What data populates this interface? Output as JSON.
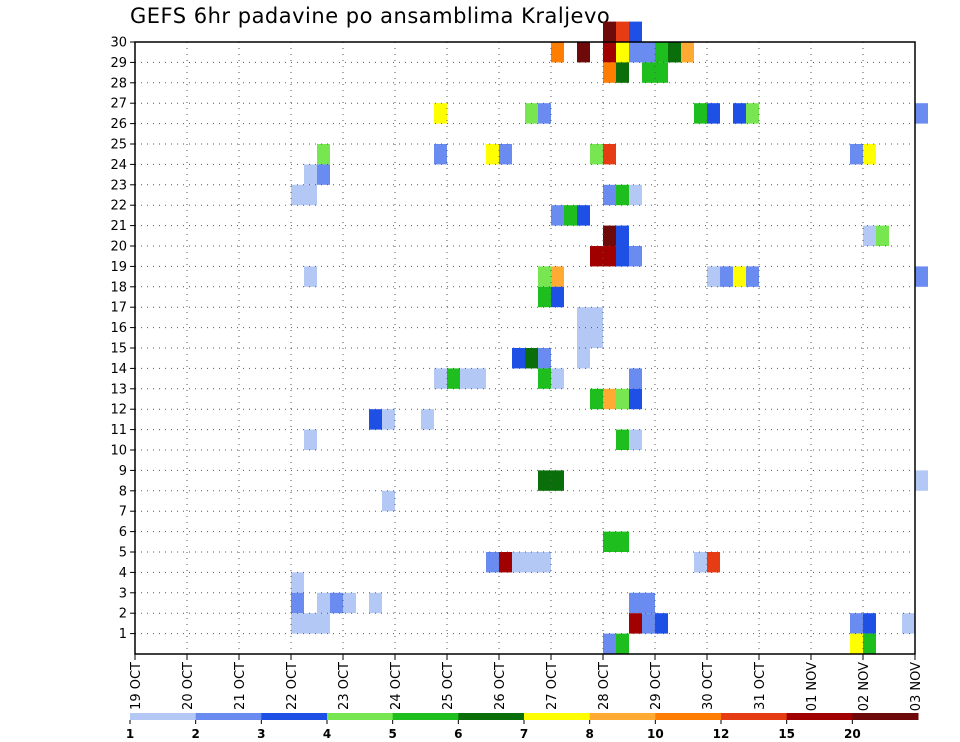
{
  "chart_data": {
    "type": "heatmap",
    "title": "GEFS 6hr padavine po ansamblima Kraljevo",
    "x_tick_labels": [
      "19 OCT",
      "20 OCT",
      "21 OCT",
      "22 OCT",
      "23 OCT",
      "24 OCT",
      "25 OCT",
      "26 OCT",
      "27 OCT",
      "28 OCT",
      "29 OCT",
      "30 OCT",
      "31 OCT",
      "01 NOV",
      "02 NOV",
      "03 NOV"
    ],
    "x_range_days": [
      0,
      15
    ],
    "step_hours": 6,
    "y_tick_labels": [
      "1",
      "2",
      "3",
      "4",
      "5",
      "6",
      "7",
      "8",
      "9",
      "10",
      "11",
      "12",
      "13",
      "14",
      "15",
      "16",
      "17",
      "18",
      "19",
      "20",
      "21",
      "22",
      "23",
      "24",
      "25",
      "26",
      "27",
      "28",
      "29",
      "30"
    ],
    "y_range": [
      0,
      30
    ],
    "grid": true,
    "legend": {
      "placement": "bottom",
      "colors": [
        "#b4c8f5",
        "#6a8cf0",
        "#1e50e6",
        "#78e650",
        "#1ebe1e",
        "#0a6e0a",
        "#ffff00",
        "#ffaa32",
        "#ff7d00",
        "#e63c14",
        "#a00000",
        "#6e0a0a"
      ],
      "labels": [
        "1",
        "2",
        "3",
        "4",
        "5",
        "6",
        "7",
        "8",
        "10",
        "12",
        "15",
        "20"
      ]
    },
    "cells": [
      {
        "member": 30,
        "start": "28 OCT 00",
        "level": 11
      },
      {
        "member": 30,
        "start": "28 OCT 06",
        "level": 9
      },
      {
        "member": 30,
        "start": "28 OCT 12",
        "level": 2
      },
      {
        "member": 29,
        "start": "27 OCT 00",
        "level": 8
      },
      {
        "member": 29,
        "start": "27 OCT 12",
        "level": 11
      },
      {
        "member": 29,
        "start": "28 OCT 00",
        "level": 10
      },
      {
        "member": 29,
        "start": "28 OCT 06",
        "level": 6
      },
      {
        "member": 29,
        "start": "28 OCT 12",
        "level": 1
      },
      {
        "member": 29,
        "start": "28 OCT 18",
        "level": 1
      },
      {
        "member": 29,
        "start": "29 OCT 00",
        "level": 4
      },
      {
        "member": 29,
        "start": "29 OCT 06",
        "level": 5
      },
      {
        "member": 29,
        "start": "29 OCT 12",
        "level": 7
      },
      {
        "member": 28,
        "start": "28 OCT 00",
        "level": 8
      },
      {
        "member": 28,
        "start": "28 OCT 06",
        "level": 5
      },
      {
        "member": 28,
        "start": "28 OCT 18",
        "level": 4
      },
      {
        "member": 28,
        "start": "29 OCT 00",
        "level": 4
      },
      {
        "member": 26,
        "start": "24 OCT 18",
        "level": 6
      },
      {
        "member": 26,
        "start": "26 OCT 12",
        "level": 3
      },
      {
        "member": 26,
        "start": "26 OCT 18",
        "level": 1
      },
      {
        "member": 26,
        "start": "29 OCT 18",
        "level": 4
      },
      {
        "member": 26,
        "start": "30 OCT 00",
        "level": 2
      },
      {
        "member": 26,
        "start": "30 OCT 12",
        "level": 2
      },
      {
        "member": 26,
        "start": "30 OCT 18",
        "level": 3
      },
      {
        "member": 26,
        "start": "03 NOV 00",
        "level": 1
      },
      {
        "member": 24,
        "start": "22 OCT 12",
        "level": 3
      },
      {
        "member": 24,
        "start": "24 OCT 18",
        "level": 1
      },
      {
        "member": 24,
        "start": "25 OCT 18",
        "level": 6
      },
      {
        "member": 24,
        "start": "26 OCT 00",
        "level": 1
      },
      {
        "member": 24,
        "start": "27 OCT 18",
        "level": 3
      },
      {
        "member": 24,
        "start": "28 OCT 00",
        "level": 9
      },
      {
        "member": 24,
        "start": "01 NOV 18",
        "level": 1
      },
      {
        "member": 24,
        "start": "02 NOV 00",
        "level": 6
      },
      {
        "member": 23,
        "start": "22 OCT 06",
        "level": 0
      },
      {
        "member": 23,
        "start": "22 OCT 12",
        "level": 1
      },
      {
        "member": 22,
        "start": "22 OCT 00",
        "level": 0
      },
      {
        "member": 22,
        "start": "22 OCT 06",
        "level": 0
      },
      {
        "member": 22,
        "start": "28 OCT 00",
        "level": 1
      },
      {
        "member": 22,
        "start": "28 OCT 06",
        "level": 4
      },
      {
        "member": 22,
        "start": "28 OCT 12",
        "level": 0
      },
      {
        "member": 21,
        "start": "27 OCT 00",
        "level": 1
      },
      {
        "member": 21,
        "start": "27 OCT 06",
        "level": 4
      },
      {
        "member": 21,
        "start": "27 OCT 12",
        "level": 2
      },
      {
        "member": 20,
        "start": "28 OCT 00",
        "level": 11
      },
      {
        "member": 20,
        "start": "28 OCT 06",
        "level": 2
      },
      {
        "member": 20,
        "start": "02 NOV 00",
        "level": 0
      },
      {
        "member": 20,
        "start": "02 NOV 06",
        "level": 3
      },
      {
        "member": 19,
        "start": "27 OCT 18",
        "level": 10
      },
      {
        "member": 19,
        "start": "28 OCT 00",
        "level": 10
      },
      {
        "member": 19,
        "start": "28 OCT 06",
        "level": 2
      },
      {
        "member": 19,
        "start": "28 OCT 12",
        "level": 1
      },
      {
        "member": 18,
        "start": "22 OCT 06",
        "level": 0
      },
      {
        "member": 18,
        "start": "26 OCT 18",
        "level": 3
      },
      {
        "member": 18,
        "start": "27 OCT 00",
        "level": 7
      },
      {
        "member": 18,
        "start": "30 OCT 00",
        "level": 0
      },
      {
        "member": 18,
        "start": "30 OCT 06",
        "level": 1
      },
      {
        "member": 18,
        "start": "30 OCT 12",
        "level": 6
      },
      {
        "member": 18,
        "start": "30 OCT 18",
        "level": 1
      },
      {
        "member": 18,
        "start": "03 NOV 00",
        "level": 1
      },
      {
        "member": 17,
        "start": "26 OCT 18",
        "level": 4
      },
      {
        "member": 17,
        "start": "27 OCT 00",
        "level": 2
      },
      {
        "member": 16,
        "start": "27 OCT 12",
        "level": 0
      },
      {
        "member": 16,
        "start": "27 OCT 18",
        "level": 0
      },
      {
        "member": 15,
        "start": "27 OCT 12",
        "level": 0
      },
      {
        "member": 15,
        "start": "27 OCT 18",
        "level": 0
      },
      {
        "member": 14,
        "start": "26 OCT 06",
        "level": 2
      },
      {
        "member": 14,
        "start": "26 OCT 12",
        "level": 5
      },
      {
        "member": 14,
        "start": "26 OCT 18",
        "level": 1
      },
      {
        "member": 14,
        "start": "27 OCT 12",
        "level": 0
      },
      {
        "member": 13,
        "start": "24 OCT 18",
        "level": 0
      },
      {
        "member": 13,
        "start": "25 OCT 00",
        "level": 4
      },
      {
        "member": 13,
        "start": "25 OCT 06",
        "level": 0
      },
      {
        "member": 13,
        "start": "25 OCT 12",
        "level": 0
      },
      {
        "member": 13,
        "start": "26 OCT 18",
        "level": 4
      },
      {
        "member": 13,
        "start": "27 OCT 00",
        "level": 0
      },
      {
        "member": 13,
        "start": "28 OCT 12",
        "level": 1
      },
      {
        "member": 12,
        "start": "27 OCT 18",
        "level": 4
      },
      {
        "member": 12,
        "start": "28 OCT 00",
        "level": 7
      },
      {
        "member": 12,
        "start": "28 OCT 06",
        "level": 3
      },
      {
        "member": 12,
        "start": "28 OCT 12",
        "level": 2
      },
      {
        "member": 11,
        "start": "23 OCT 12",
        "level": 2
      },
      {
        "member": 11,
        "start": "23 OCT 18",
        "level": 0
      },
      {
        "member": 11,
        "start": "24 OCT 12",
        "level": 0
      },
      {
        "member": 10,
        "start": "22 OCT 06",
        "level": 0
      },
      {
        "member": 10,
        "start": "28 OCT 06",
        "level": 4
      },
      {
        "member": 10,
        "start": "28 OCT 12",
        "level": 0
      },
      {
        "member": 8,
        "start": "26 OCT 18",
        "level": 5
      },
      {
        "member": 8,
        "start": "27 OCT 00",
        "level": 5
      },
      {
        "member": 8,
        "start": "03 NOV 00",
        "level": 0
      },
      {
        "member": 7,
        "start": "23 OCT 18",
        "level": 0
      },
      {
        "member": 5,
        "start": "28 OCT 00",
        "level": 4
      },
      {
        "member": 5,
        "start": "28 OCT 06",
        "level": 4
      },
      {
        "member": 4,
        "start": "25 OCT 18",
        "level": 1
      },
      {
        "member": 4,
        "start": "26 OCT 00",
        "level": 10
      },
      {
        "member": 4,
        "start": "26 OCT 06",
        "level": 0
      },
      {
        "member": 4,
        "start": "26 OCT 12",
        "level": 0
      },
      {
        "member": 4,
        "start": "26 OCT 18",
        "level": 0
      },
      {
        "member": 4,
        "start": "29 OCT 18",
        "level": 0
      },
      {
        "member": 4,
        "start": "30 OCT 00",
        "level": 9
      },
      {
        "member": 3,
        "start": "22 OCT 00",
        "level": 0
      },
      {
        "member": 2,
        "start": "22 OCT 00",
        "level": 1
      },
      {
        "member": 2,
        "start": "22 OCT 12",
        "level": 0
      },
      {
        "member": 2,
        "start": "22 OCT 18",
        "level": 1
      },
      {
        "member": 2,
        "start": "23 OCT 00",
        "level": 0
      },
      {
        "member": 2,
        "start": "23 OCT 12",
        "level": 0
      },
      {
        "member": 2,
        "start": "28 OCT 12",
        "level": 1
      },
      {
        "member": 2,
        "start": "28 OCT 18",
        "level": 1
      },
      {
        "member": 1,
        "start": "22 OCT 00",
        "level": 0
      },
      {
        "member": 1,
        "start": "22 OCT 06",
        "level": 0
      },
      {
        "member": 1,
        "start": "22 OCT 12",
        "level": 0
      },
      {
        "member": 1,
        "start": "28 OCT 12",
        "level": 10
      },
      {
        "member": 1,
        "start": "28 OCT 18",
        "level": 1
      },
      {
        "member": 1,
        "start": "29 OCT 00",
        "level": 2
      },
      {
        "member": 1,
        "start": "01 NOV 18",
        "level": 1
      },
      {
        "member": 1,
        "start": "02 NOV 00",
        "level": 2
      },
      {
        "member": 1,
        "start": "02 NOV 18",
        "level": 0
      },
      {
        "member": 0,
        "start": "28 OCT 00",
        "level": 1
      },
      {
        "member": 0,
        "start": "28 OCT 06",
        "level": 4
      },
      {
        "member": 0,
        "start": "01 NOV 18",
        "level": 6
      },
      {
        "member": 0,
        "start": "02 NOV 00",
        "level": 4
      }
    ]
  }
}
